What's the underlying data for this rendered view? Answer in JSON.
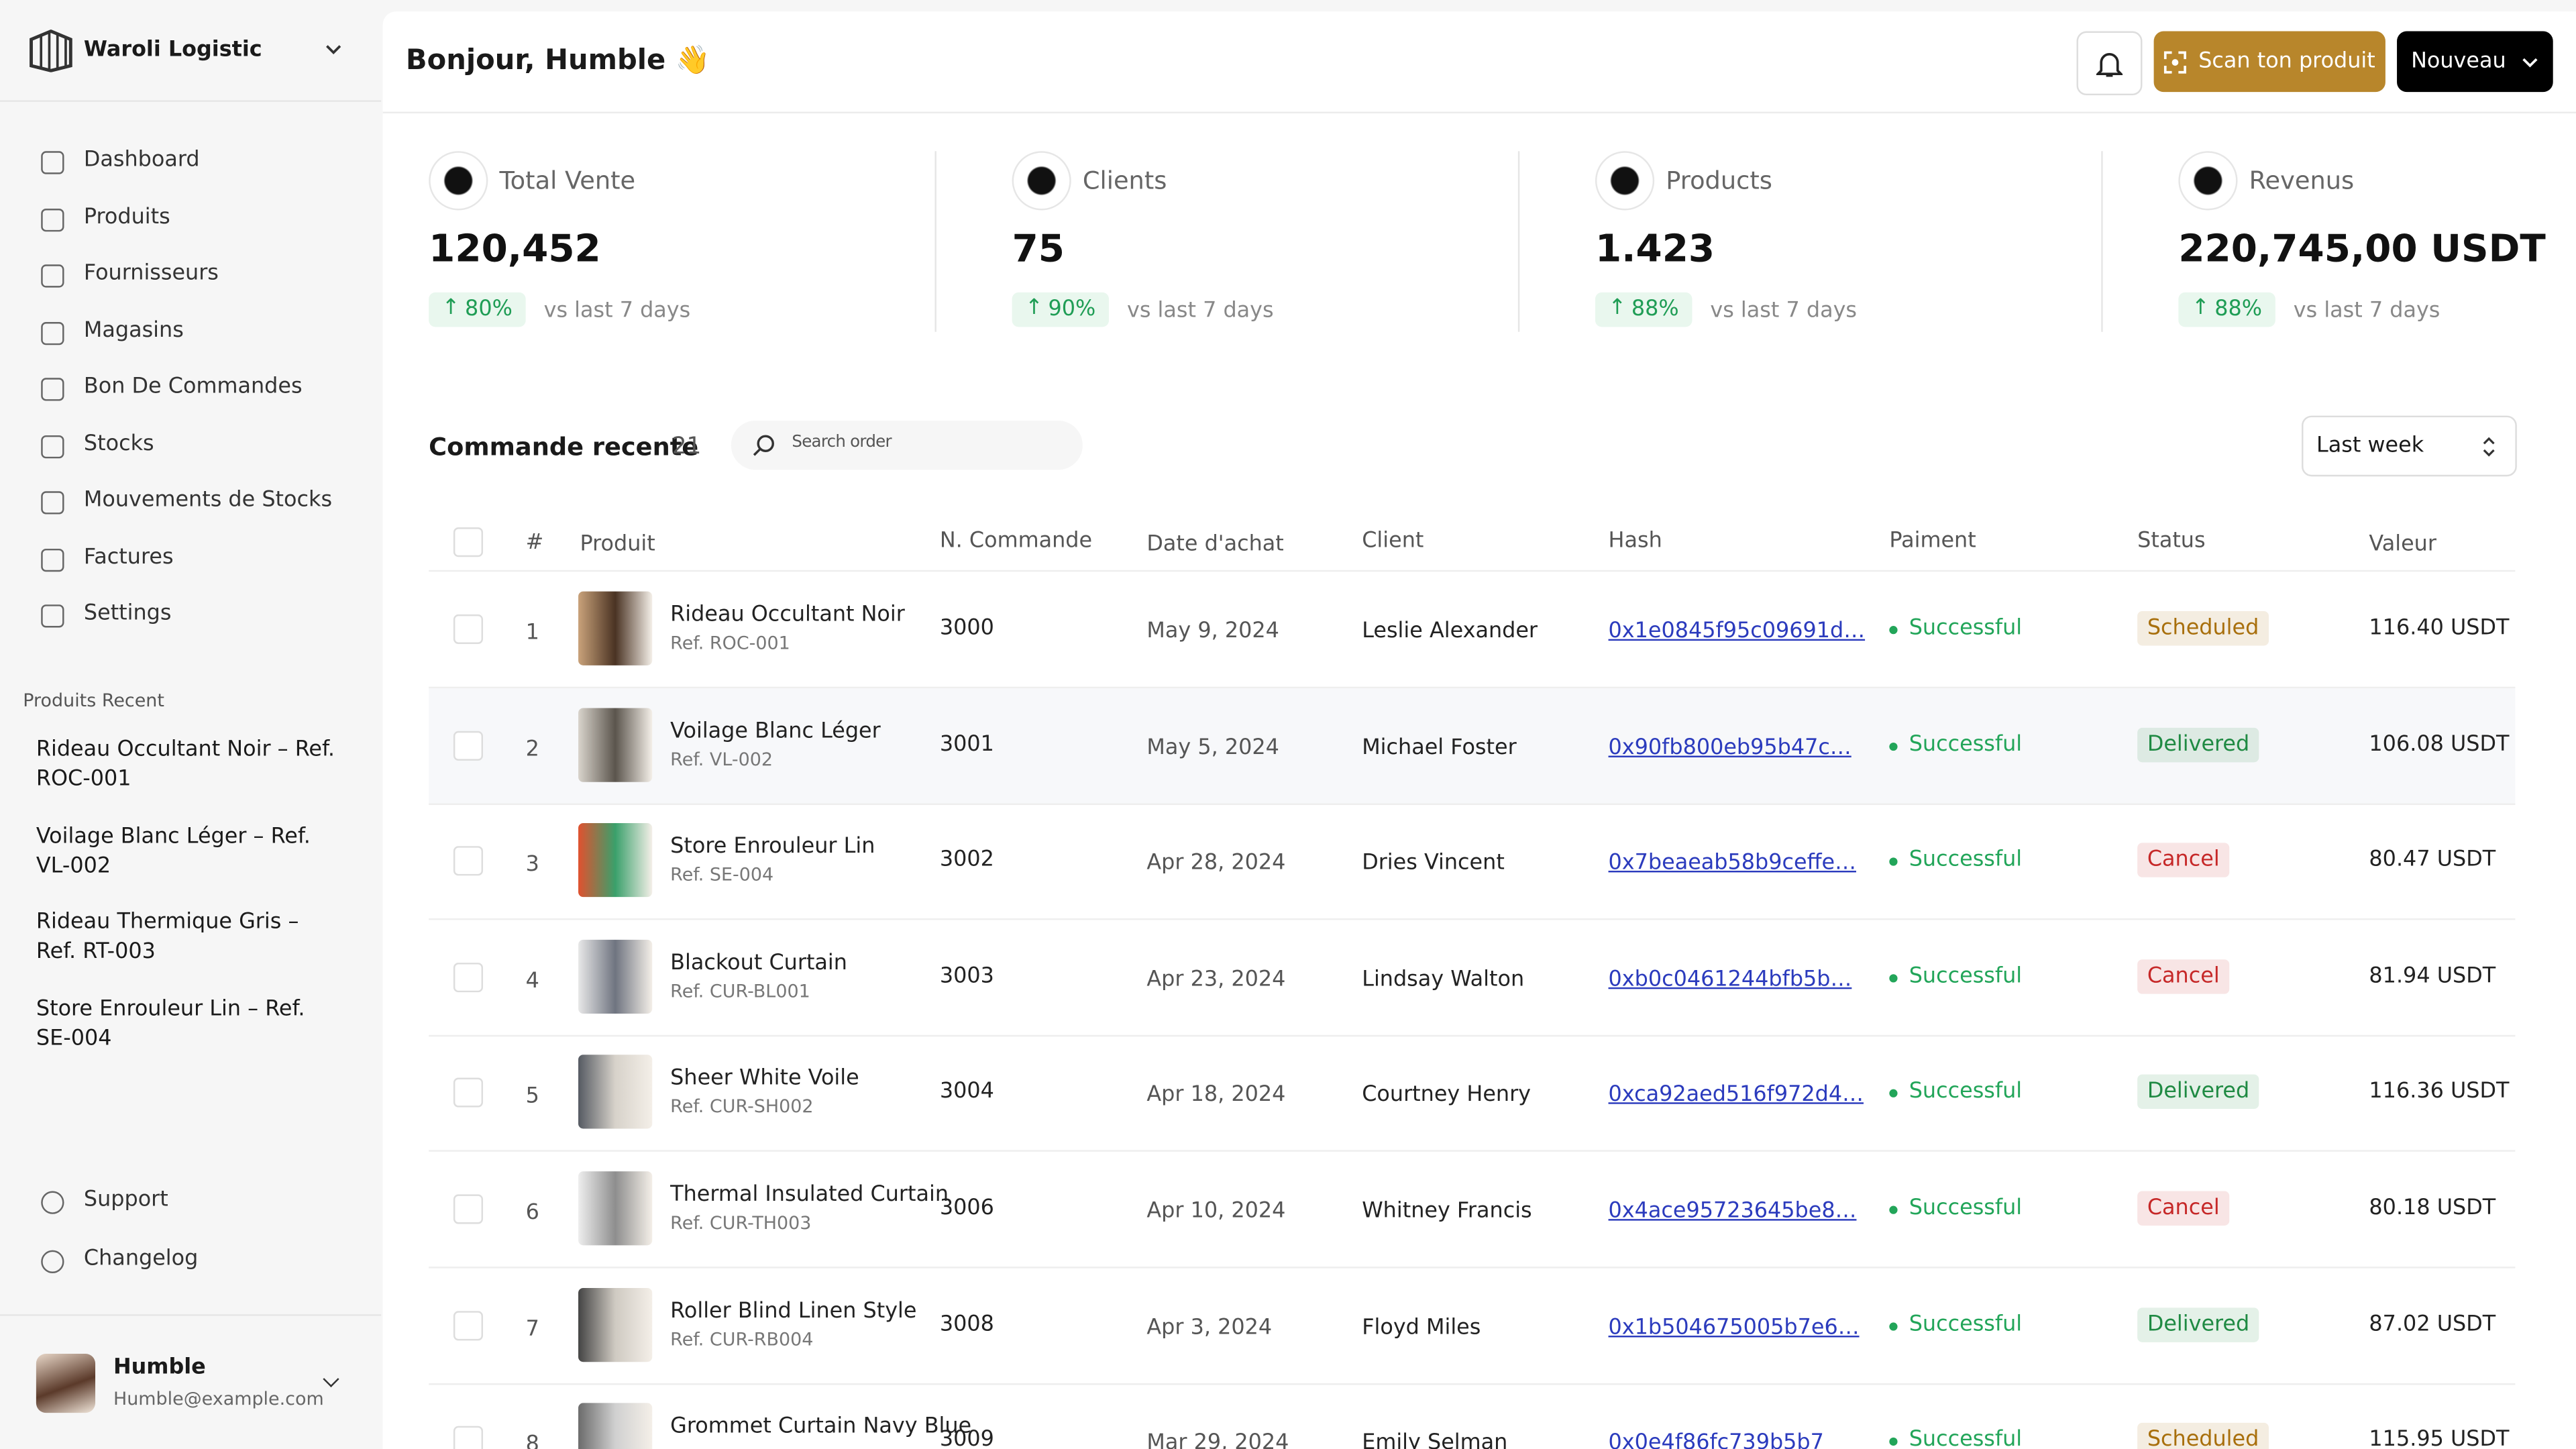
{
  "sidebar": {
    "brand": "Waroli Logistic",
    "nav": [
      "Dashboard",
      "Produits",
      "Fournisseurs",
      "Magasins",
      "Bon De Commandes",
      "Stocks",
      "Mouvements de Stocks",
      "Factures",
      "Settings"
    ],
    "recent_title": "Produits Recent",
    "recent": [
      "Rideau Occultant Noir – Ref. ROC-001",
      "Voilage Blanc Léger – Ref. VL-002",
      "Rideau Thermique Gris – Ref. RT-003",
      "Store Enrouleur Lin – Ref. SE-004"
    ],
    "footer_links": [
      "Support",
      "Changelog"
    ],
    "user": {
      "name": "Humble",
      "email": "Humble@example.com"
    }
  },
  "header": {
    "greeting": "Bonjour, Humble 👋",
    "scan_button": "Scan ton produit",
    "new_button": "Nouveau"
  },
  "stats": [
    {
      "label": "Total Vente",
      "value": "120,452",
      "change": "80%",
      "period": "vs last 7 days"
    },
    {
      "label": "Clients",
      "value": "75",
      "change": "90%",
      "period": "vs last 7 days"
    },
    {
      "label": "Products",
      "value": "1.423",
      "change": "88%",
      "period": "vs last 7 days"
    },
    {
      "label": "Revenus",
      "value": "220,745,00 USDT",
      "change": "88%",
      "period": "vs last 7 days"
    }
  ],
  "orders": {
    "title": "Commande recente",
    "count": 21,
    "search_placeholder": "Search order",
    "filter": "Last week",
    "columns": [
      "#",
      "Produit",
      "N. Commande",
      "Date d'achat",
      "Client",
      "Hash",
      "Paiment",
      "Status",
      "Valeur"
    ],
    "rows": [
      {
        "index": 1,
        "product": "Rideau Occultant Noir",
        "ref": "Ref. ROC-001",
        "order": "3000",
        "date": "May 9, 2024",
        "client": "Leslie Alexander",
        "hash": "0x1e0845f95c09691d…",
        "payment": "Successful",
        "status": "Scheduled",
        "status_color": "#a86f0c",
        "value": "116.40 USDT"
      },
      {
        "index": 2,
        "product": "Voilage Blanc Léger",
        "ref": "Ref. VL-002",
        "order": "3001",
        "date": "May 5, 2024",
        "client": "Michael Foster",
        "hash": "0x90fb800eb95b47c…",
        "payment": "Successful",
        "status": "Delivered",
        "status_color": "#1f8a43",
        "value": "106.08 USDT"
      },
      {
        "index": 3,
        "product": "Store Enrouleur Lin",
        "ref": "Ref. SE-004",
        "order": "3002",
        "date": "Apr 28, 2024",
        "client": "Dries Vincent",
        "hash": "0x7beaeab58b9ceffe…",
        "payment": "Successful",
        "status": "Cancel",
        "status_color": "#c62828",
        "value": "80.47 USDT"
      },
      {
        "index": 4,
        "product": "Blackout Curtain",
        "ref": "Ref. CUR-BL001",
        "order": "3003",
        "date": "Apr 23, 2024",
        "client": "Lindsay Walton",
        "hash": "0xb0c0461244bfb5b…",
        "payment": "Successful",
        "status": "Cancel",
        "status_color": "#c62828",
        "value": "81.94 USDT"
      },
      {
        "index": 5,
        "product": "Sheer White Voile",
        "ref": "Ref. CUR-SH002",
        "order": "3004",
        "date": "Apr 18, 2024",
        "client": "Courtney Henry",
        "hash": "0xca92aed516f972d4…",
        "payment": "Successful",
        "status": "Delivered",
        "status_color": "#1f8a43",
        "value": "116.36 USDT"
      },
      {
        "index": 6,
        "product": "Thermal Insulated Curtain",
        "ref": "Ref. CUR-TH003",
        "order": "3006",
        "date": "Apr 10, 2024",
        "client": "Whitney Francis",
        "hash": "0x4ace95723645be8…",
        "payment": "Successful",
        "status": "Cancel",
        "status_color": "#c62828",
        "value": "80.18 USDT"
      },
      {
        "index": 7,
        "product": "Roller Blind Linen Style",
        "ref": "Ref. CUR-RB004",
        "order": "3008",
        "date": "Apr 3, 2024",
        "client": "Floyd Miles",
        "hash": "0x1b504675005b7e6…",
        "payment": "Successful",
        "status": "Delivered",
        "status_color": "#1f8a43",
        "value": "87.02 USDT"
      },
      {
        "index": 8,
        "product": "Grommet Curtain Navy Blue",
        "order": "3009",
        "date": "Mar 29, 2024",
        "client": "Emily Selman",
        "hash": "0x0e4f86fc739b5b7",
        "payment": "Successful",
        "status": "Scheduled",
        "status_color": "#a86f0c",
        "value": "115.95 USDT"
      }
    ]
  }
}
